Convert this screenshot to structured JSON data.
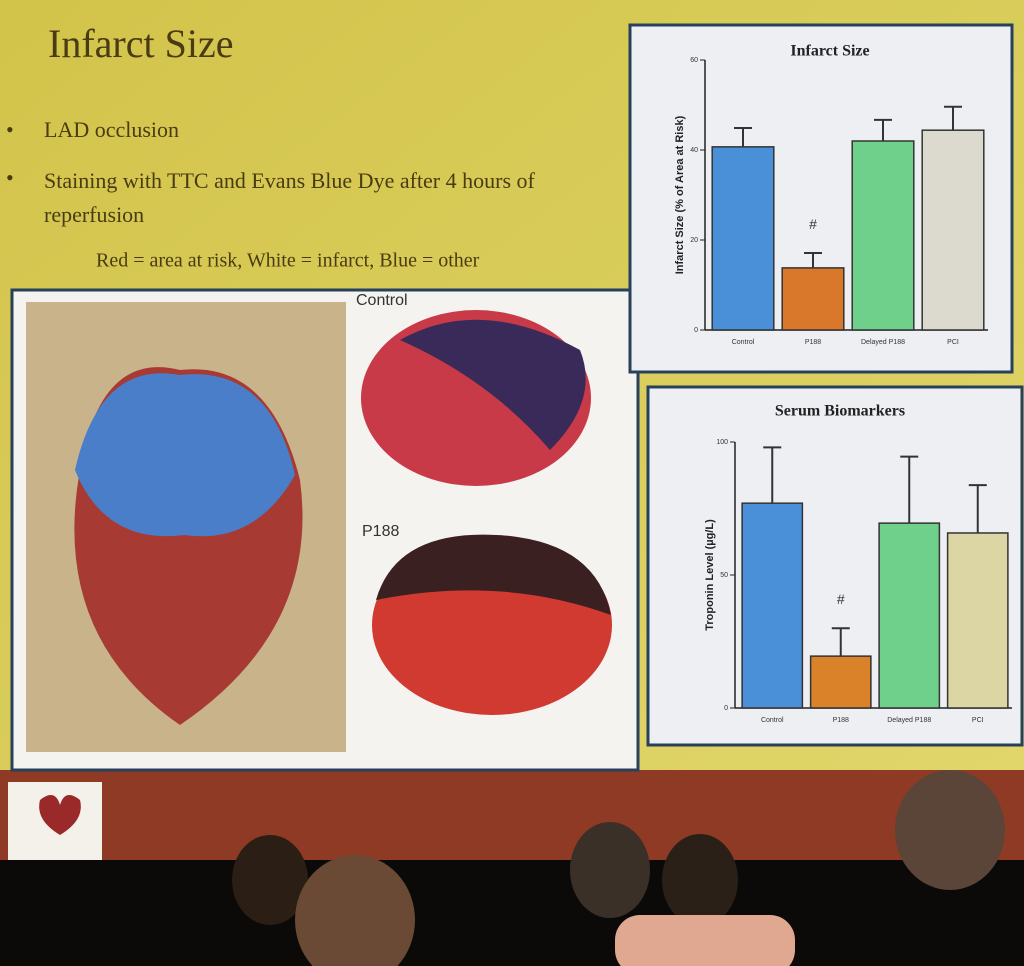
{
  "slide": {
    "title": "Infarct Size",
    "bullets": [
      "LAD occlusion",
      "Staining with TTC and Evans Blue Dye after 4 hours of reperfusion"
    ],
    "subbullet": "Red = area at risk, White = infarct, Blue = other",
    "image_labels": [
      "Control",
      "P188"
    ]
  },
  "chart_data": [
    {
      "type": "bar",
      "title": "Infarct Size",
      "ylabel": "Infarct Size (% of Area at Risk)",
      "categories": [
        "Control",
        "P188",
        "Delayed P188",
        "PCI"
      ],
      "values": [
        40.7,
        13.8,
        42,
        44.4
      ],
      "errors": [
        4.2,
        3.3,
        4.7,
        5.2
      ],
      "colors": [
        "#4a90d9",
        "#d9782a",
        "#6fd08c",
        "#dcd9cf"
      ],
      "ylim": [
        0,
        60
      ],
      "yticks": [
        0,
        20,
        40,
        60
      ],
      "annotation": "#"
    },
    {
      "type": "bar",
      "title": "Serum Biomarkers",
      "ylabel": "Troponin Level (µg/L)",
      "categories": [
        "Control",
        "P188",
        "Delayed P188",
        "PCI"
      ],
      "values": [
        77,
        19.5,
        69.5,
        65.8
      ],
      "errors": [
        21,
        10.5,
        25,
        18
      ],
      "colors": [
        "#4a90d9",
        "#d9822a",
        "#6fd08c",
        "#dcd6a4"
      ],
      "ylim": [
        0,
        100
      ],
      "yticks": [
        0,
        50,
        100
      ],
      "annotation": "#"
    }
  ]
}
